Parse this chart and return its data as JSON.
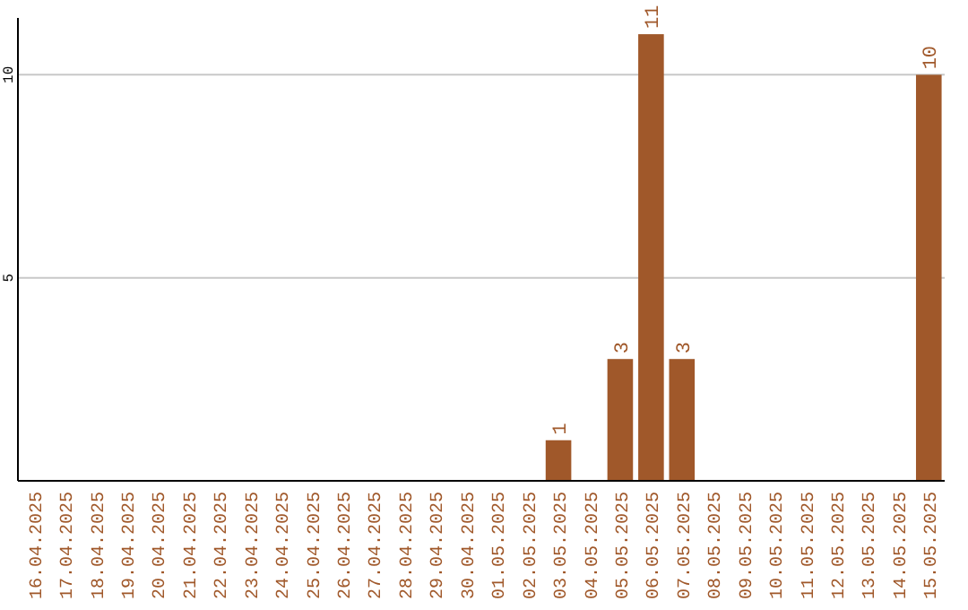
{
  "chart_data": {
    "type": "bar",
    "categories": [
      "16.04.2025",
      "17.04.2025",
      "18.04.2025",
      "19.04.2025",
      "20.04.2025",
      "21.04.2025",
      "22.04.2025",
      "23.04.2025",
      "24.04.2025",
      "25.04.2025",
      "26.04.2025",
      "27.04.2025",
      "28.04.2025",
      "29.04.2025",
      "30.04.2025",
      "01.05.2025",
      "02.05.2025",
      "03.05.2025",
      "04.05.2025",
      "05.05.2025",
      "06.05.2025",
      "07.05.2025",
      "08.05.2025",
      "09.05.2025",
      "10.05.2025",
      "11.05.2025",
      "12.05.2025",
      "13.05.2025",
      "14.05.2025",
      "15.05.2025"
    ],
    "values": [
      0,
      0,
      0,
      0,
      0,
      0,
      0,
      0,
      0,
      0,
      0,
      0,
      0,
      0,
      0,
      0,
      0,
      1,
      0,
      3,
      11,
      3,
      0,
      0,
      0,
      0,
      0,
      0,
      0,
      10
    ],
    "value_labels": [
      null,
      null,
      null,
      null,
      null,
      null,
      null,
      null,
      null,
      null,
      null,
      null,
      null,
      null,
      null,
      null,
      null,
      "1",
      null,
      "3",
      "11",
      "3",
      null,
      null,
      null,
      null,
      null,
      null,
      null,
      "10"
    ],
    "color": "#a0582a",
    "ylim": [
      0,
      11.4
    ],
    "yticks": [
      5,
      10
    ],
    "grid": "y"
  }
}
